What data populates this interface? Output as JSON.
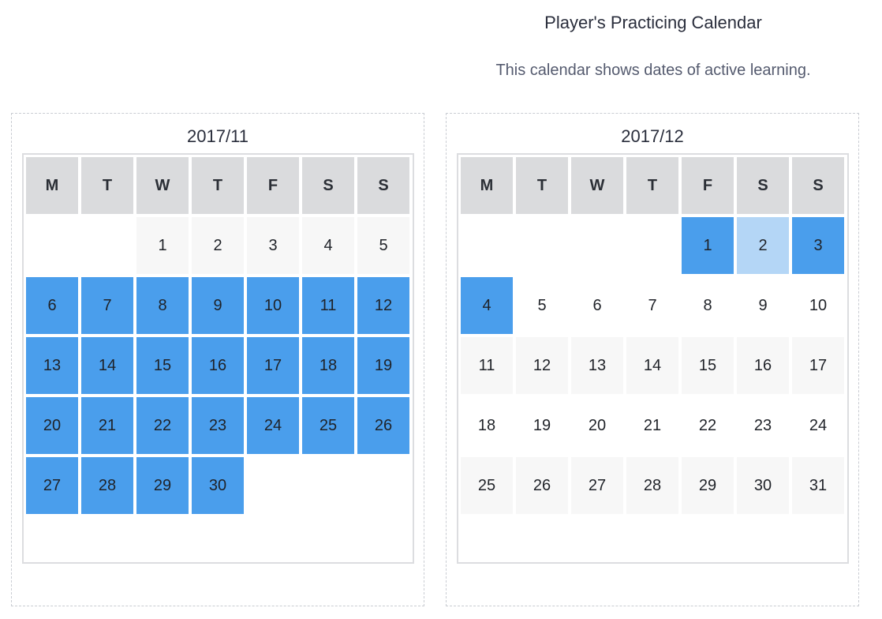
{
  "header": {
    "title": "Player's Practicing Calendar",
    "subtitle": "This calendar shows dates of active learning."
  },
  "colors": {
    "active": "#4a9eec",
    "partial": "#b4d6f6",
    "header_bg": "#dadbdd",
    "shaded_row": "#f7f7f7"
  },
  "weekdays": [
    "M",
    "T",
    "W",
    "T",
    "F",
    "S",
    "S"
  ],
  "months": [
    {
      "label": "2017/11",
      "start_offset": 2,
      "days": 30,
      "active_days": [
        6,
        7,
        8,
        9,
        10,
        11,
        12,
        13,
        14,
        15,
        16,
        17,
        18,
        19,
        20,
        21,
        22,
        23,
        24,
        25,
        26,
        27,
        28,
        29,
        30
      ],
      "partial_days": []
    },
    {
      "label": "2017/12",
      "start_offset": 4,
      "days": 31,
      "active_days": [
        1,
        3,
        4
      ],
      "partial_days": [
        2
      ]
    }
  ]
}
